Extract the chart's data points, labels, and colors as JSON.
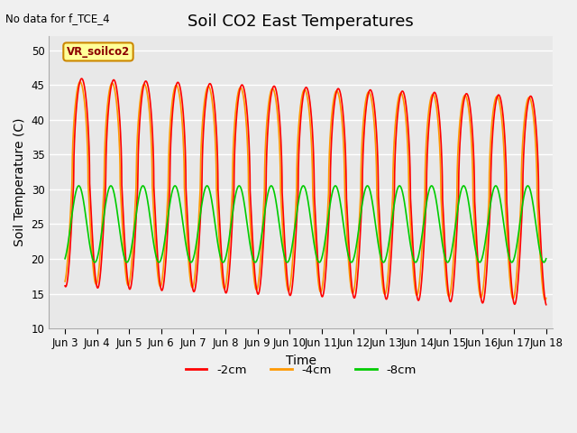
{
  "title": "Soil CO2 East Temperatures",
  "no_data_text": "No data for f_TCE_4",
  "ylabel": "Soil Temperature (C)",
  "xlabel": "Time",
  "ylim": [
    10,
    52
  ],
  "xlim_days": [
    2.5,
    18.2
  ],
  "bg_color": "#e8e8e8",
  "legend_box_color": "#ffff99",
  "legend_box_edge": "#cc8800",
  "legend_label": "VR_soilco2",
  "series": {
    "-2cm": {
      "color": "#ff0000",
      "linewidth": 1.2
    },
    "-4cm": {
      "color": "#ff9900",
      "linewidth": 1.2
    },
    "-8cm": {
      "color": "#00cc00",
      "linewidth": 1.2
    }
  },
  "xtick_labels": [
    "Jun 3",
    "Jun 4",
    "Jun 5",
    "Jun 6",
    "Jun 7",
    "Jun 8",
    "Jun 9",
    "Jun 10",
    "Jun 11",
    "Jun 12",
    "Jun 13",
    "Jun 14",
    "Jun 15",
    "Jun 16",
    "Jun 17",
    "Jun 18"
  ],
  "xtick_positions": [
    3,
    4,
    5,
    6,
    7,
    8,
    9,
    10,
    11,
    12,
    13,
    14,
    15,
    16,
    17,
    18
  ],
  "ytick_positions": [
    10,
    15,
    20,
    25,
    30,
    35,
    40,
    45,
    50
  ],
  "grid_color": "#ffffff",
  "title_fontsize": 13,
  "axis_label_fontsize": 10,
  "tick_fontsize": 8.5
}
